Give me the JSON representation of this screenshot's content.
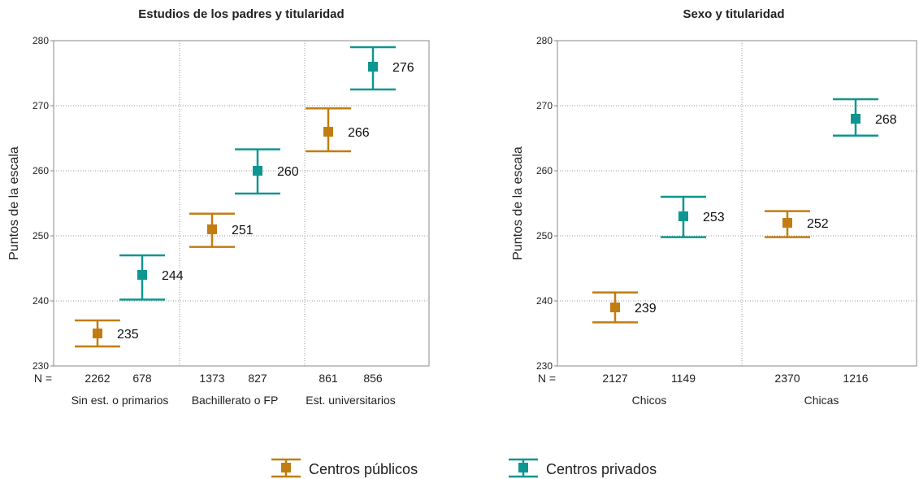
{
  "colors": {
    "public": "#C17D11",
    "private": "#0E9690"
  },
  "legend": {
    "public_label": "Centros públicos",
    "private_label": "Centros privados"
  },
  "chart_data": [
    {
      "type": "errorbar",
      "title": "Estudios de los padres y titularidad",
      "ylabel": "Puntos de la escala",
      "ylim": [
        230,
        280
      ],
      "yticks": [
        230,
        240,
        250,
        260,
        270,
        280
      ],
      "n_label": "N =",
      "grid": true,
      "groups": [
        {
          "label": "Sin est. o primarios",
          "points": [
            {
              "series": "public",
              "n": "2262",
              "mean": 235,
              "low": 233,
              "high": 237,
              "label": "235"
            },
            {
              "series": "private",
              "n": "678",
              "mean": 244,
              "low": 240.2,
              "high": 247,
              "label": "244"
            }
          ]
        },
        {
          "label": "Bachillerato o FP",
          "points": [
            {
              "series": "public",
              "n": "1373",
              "mean": 251,
              "low": 248.3,
              "high": 253.4,
              "label": "251"
            },
            {
              "series": "private",
              "n": "827",
              "mean": 260,
              "low": 256.5,
              "high": 263.3,
              "label": "260"
            }
          ]
        },
        {
          "label": "Est. universitarios",
          "points": [
            {
              "series": "public",
              "n": "861",
              "mean": 266,
              "low": 263,
              "high": 269.6,
              "label": "266"
            },
            {
              "series": "private",
              "n": "856",
              "mean": 276,
              "low": 272.5,
              "high": 279,
              "label": "276"
            }
          ]
        }
      ]
    },
    {
      "type": "errorbar",
      "title": "Sexo y titularidad",
      "ylabel": "Puntos de la escala",
      "ylim": [
        230,
        280
      ],
      "yticks": [
        230,
        240,
        250,
        260,
        270,
        280
      ],
      "n_label": "N =",
      "grid": true,
      "groups": [
        {
          "label": "Chicos",
          "points": [
            {
              "series": "public",
              "n": "2127",
              "mean": 239,
              "low": 236.7,
              "high": 241.3,
              "label": "239"
            },
            {
              "series": "private",
              "n": "1149",
              "mean": 253,
              "low": 249.8,
              "high": 256,
              "label": "253"
            }
          ]
        },
        {
          "label": "Chicas",
          "points": [
            {
              "series": "public",
              "n": "2370",
              "mean": 252,
              "low": 249.8,
              "high": 253.8,
              "label": "252"
            },
            {
              "series": "private",
              "n": "1216",
              "mean": 268,
              "low": 265.4,
              "high": 271,
              "label": "268"
            }
          ]
        }
      ]
    }
  ]
}
